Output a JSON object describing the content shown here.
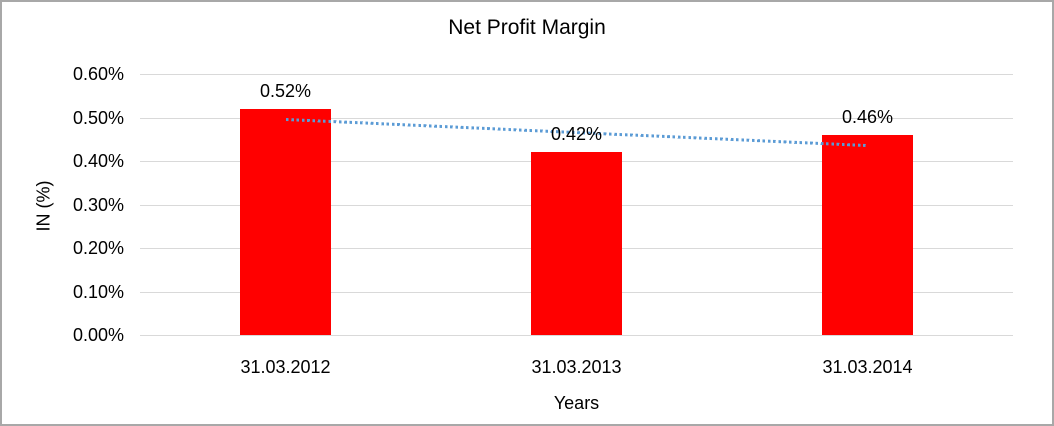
{
  "chart_data": {
    "type": "bar",
    "title": "Net Profit Margin",
    "xlabel": "Years",
    "ylabel": "IN (%)",
    "categories": [
      "31.03.2012",
      "31.03.2013",
      "31.03.2014"
    ],
    "values": [
      0.52,
      0.42,
      0.46
    ],
    "data_labels": [
      "0.52%",
      "0.42%",
      "0.46%"
    ],
    "unit": "percent",
    "ylim": [
      0,
      0.6
    ],
    "yticks": [
      {
        "value": 0.6,
        "label": "0.60%"
      },
      {
        "value": 0.5,
        "label": "0.50%"
      },
      {
        "value": 0.4,
        "label": "0.40%"
      },
      {
        "value": 0.3,
        "label": "0.30%"
      },
      {
        "value": 0.2,
        "label": "0.20%"
      },
      {
        "value": 0.1,
        "label": "0.10%"
      },
      {
        "value": 0.0,
        "label": "0.00%"
      }
    ],
    "grid": "horizontal",
    "legend": "none",
    "trendline": {
      "type": "linear",
      "style": "dotted",
      "start_value": 0.497,
      "end_value": 0.437
    },
    "colors": {
      "bar": "#FF0000",
      "trendline": "#5B9BD5",
      "gridline": "#D9D9D9",
      "text": "#000000",
      "chart_border": "#A8A8A8"
    }
  }
}
